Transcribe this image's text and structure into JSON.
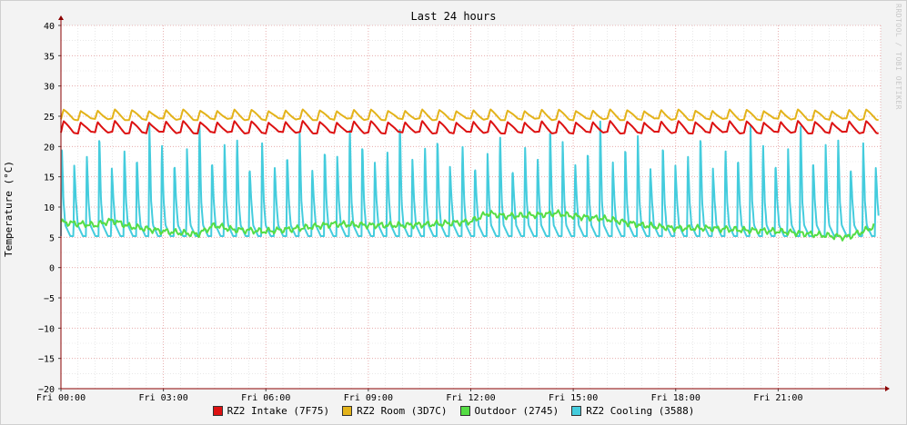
{
  "chart_data": {
    "type": "line",
    "title": "Last 24 hours",
    "ylabel": "Temperature (°C)",
    "watermark": "RRDTOOL / TOBI OETIKER",
    "ylim": [
      -20,
      40
    ],
    "xlim_hours": [
      0,
      24
    ],
    "y_ticks": [
      "40",
      "35",
      "30",
      "25",
      "20",
      "15",
      "10",
      "5",
      "0",
      "−5",
      "−10",
      "−15",
      "−20"
    ],
    "x_ticks": [
      "Fri 00:00",
      "Fri 03:00",
      "Fri 06:00",
      "Fri 09:00",
      "Fri 12:00",
      "Fri 15:00",
      "Fri 18:00",
      "Fri 21:00"
    ],
    "grid": true,
    "legend_position": "bottom",
    "colors": {
      "grid_major": "#e5a0a0",
      "grid_minor": "#d9d9d9",
      "axis": "#8b0000"
    },
    "series": [
      {
        "name": "RZ2 Intake (7F75)",
        "color": "#dd1111",
        "pattern": "sawtooth",
        "base": 23.0,
        "amplitude": 1.0,
        "cycle_minutes": 30,
        "min": 22.3,
        "max": 24.1
      },
      {
        "name": "RZ2 Room (3D7C)",
        "color": "#e3b31a",
        "pattern": "sawtooth",
        "base": 25.0,
        "amplitude": 0.8,
        "cycle_minutes": 30,
        "min": 24.5,
        "max": 26.0
      },
      {
        "name": "Outdoor (2745)",
        "color": "#55dd44",
        "pattern": "smooth",
        "points": [
          [
            0,
            7.5
          ],
          [
            1,
            7.0
          ],
          [
            1.5,
            7.8
          ],
          [
            2,
            6.8
          ],
          [
            3,
            6.0
          ],
          [
            4,
            5.5
          ],
          [
            4.5,
            7.0
          ],
          [
            5,
            6.3
          ],
          [
            6,
            6.0
          ],
          [
            7,
            6.5
          ],
          [
            8,
            7.2
          ],
          [
            9,
            7.0
          ],
          [
            10,
            7.0
          ],
          [
            11,
            7.2
          ],
          [
            12,
            7.6
          ],
          [
            12.5,
            9.0
          ],
          [
            13,
            8.5
          ],
          [
            14,
            8.7
          ],
          [
            14.5,
            9.0
          ],
          [
            15,
            8.5
          ],
          [
            16,
            8.0
          ],
          [
            17,
            7.0
          ],
          [
            18,
            6.5
          ],
          [
            19,
            6.5
          ],
          [
            20,
            6.2
          ],
          [
            21,
            6.0
          ],
          [
            22,
            5.5
          ],
          [
            23,
            5.0
          ],
          [
            23.5,
            6.0
          ],
          [
            23.8,
            6.8
          ]
        ]
      },
      {
        "name": "RZ2 Cooling (3588)",
        "color": "#44ccdd",
        "pattern": "spikes",
        "low": 5.2,
        "high": 19.5,
        "cycle_minutes": 22,
        "peaks": [
          20.8,
          17.0,
          19.0,
          22.5,
          16.5,
          20.0,
          18.5,
          23.8,
          21.0,
          17.5,
          19.8,
          24.5,
          18.0,
          20.5,
          22.0,
          16.8
        ]
      }
    ]
  }
}
